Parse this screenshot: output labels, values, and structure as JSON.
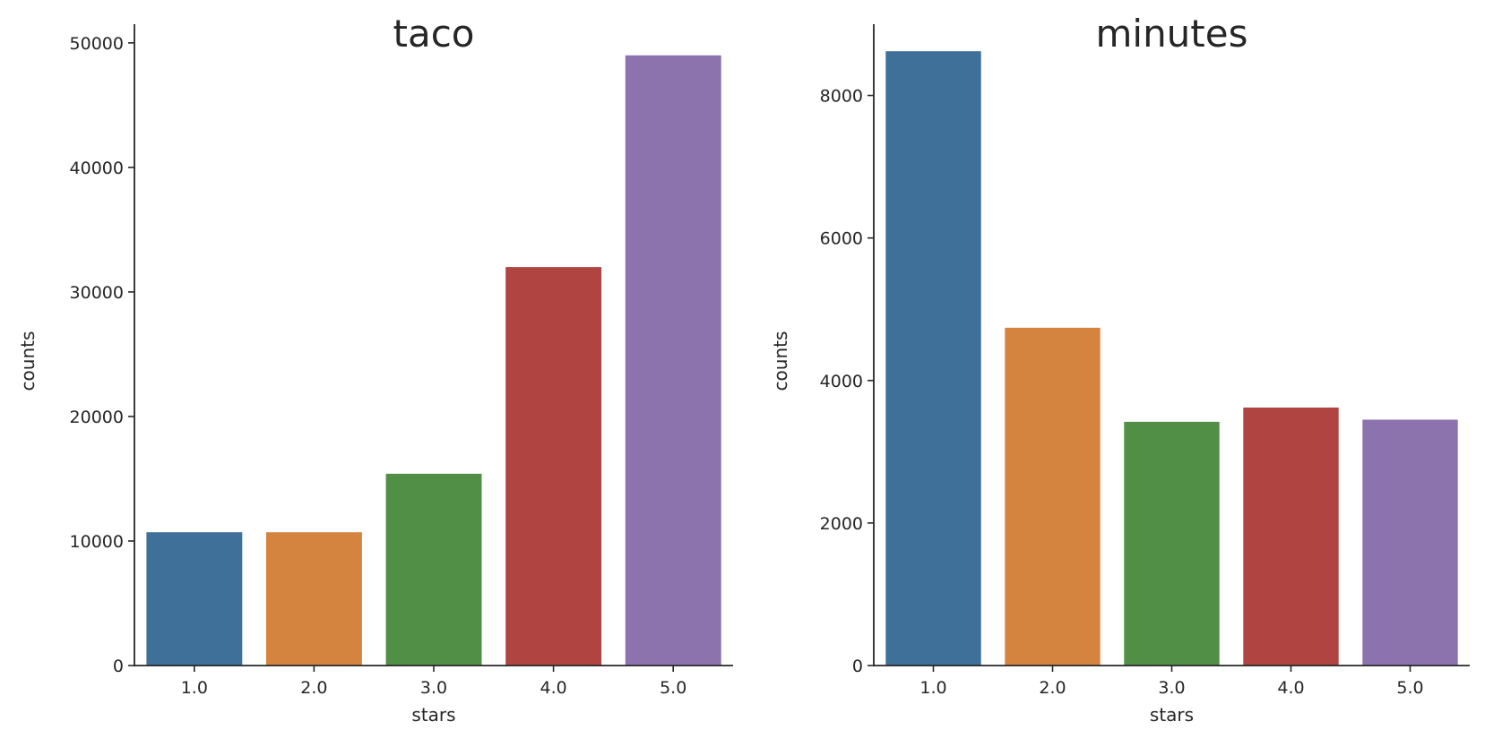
{
  "chart_data": [
    {
      "type": "bar",
      "title": "taco",
      "xlabel": "stars",
      "ylabel": "counts",
      "categories": [
        "1.0",
        "2.0",
        "3.0",
        "4.0",
        "5.0"
      ],
      "values": [
        10700,
        10700,
        15400,
        32000,
        49000
      ],
      "ylim": [
        0,
        51500
      ],
      "yticks": [
        0,
        10000,
        20000,
        30000,
        40000,
        50000
      ],
      "ytick_labels": [
        "0",
        "10000",
        "20000",
        "30000",
        "40000",
        "50000"
      ],
      "colors": [
        "#3f7099",
        "#d4843e",
        "#508f45",
        "#af4441",
        "#8c73ae"
      ],
      "grid": false,
      "spines": "left-bottom"
    },
    {
      "type": "bar",
      "title": "minutes",
      "xlabel": "stars",
      "ylabel": "counts",
      "categories": [
        "1.0",
        "2.0",
        "3.0",
        "4.0",
        "5.0"
      ],
      "values": [
        8620,
        4740,
        3420,
        3620,
        3450
      ],
      "ylim": [
        0,
        9000
      ],
      "yticks": [
        0,
        2000,
        4000,
        6000,
        8000
      ],
      "ytick_labels": [
        "0",
        "2000",
        "4000",
        "6000",
        "8000"
      ],
      "colors": [
        "#3f7099",
        "#d4843e",
        "#508f45",
        "#af4441",
        "#8c73ae"
      ],
      "grid": false,
      "spines": "left-bottom"
    }
  ]
}
